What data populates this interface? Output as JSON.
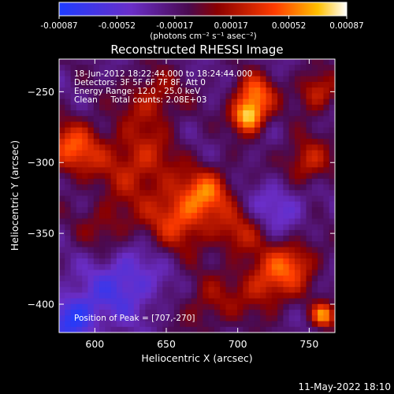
{
  "chart_data": {
    "type": "heatmap",
    "title": "Reconstructed RHESSI Image",
    "xlabel": "Heliocentric X (arcsec)",
    "ylabel": "Heliocentric Y (arcsec)",
    "xlim": [
      575,
      768
    ],
    "ylim": [
      -420,
      -227
    ],
    "xticks": [
      600,
      650,
      700,
      750
    ],
    "yticks": [
      -250,
      -300,
      -350,
      -400
    ],
    "colorbar": {
      "label": "(photons cm⁻² s⁻¹ asec⁻²)",
      "range": [
        -0.00087,
        0.00087
      ],
      "ticks": [
        "-0.00087",
        "-0.00052",
        "-0.00017",
        "0.00017",
        "0.00052",
        "0.00087"
      ]
    },
    "peak": [
      707,
      -270
    ],
    "hot_spots": [
      {
        "x": 707,
        "y": -268,
        "v": 1.0,
        "r": 8
      },
      {
        "x": 712,
        "y": -252,
        "v": 0.75,
        "r": 10
      },
      {
        "x": 585,
        "y": -290,
        "v": 0.7,
        "r": 14
      },
      {
        "x": 660,
        "y": -338,
        "v": 0.7,
        "r": 16
      },
      {
        "x": 630,
        "y": -300,
        "v": 0.55,
        "r": 18
      },
      {
        "x": 680,
        "y": -320,
        "v": 0.6,
        "r": 12
      },
      {
        "x": 720,
        "y": -385,
        "v": 0.6,
        "r": 14
      },
      {
        "x": 740,
        "y": -370,
        "v": 0.55,
        "r": 12
      },
      {
        "x": 760,
        "y": -408,
        "v": 0.85,
        "r": 6
      },
      {
        "x": 748,
        "y": -300,
        "v": 0.55,
        "r": 12
      },
      {
        "x": 755,
        "y": -250,
        "v": 0.55,
        "r": 10
      },
      {
        "x": 640,
        "y": -255,
        "v": 0.45,
        "r": 14
      },
      {
        "x": 700,
        "y": -350,
        "v": 0.45,
        "r": 12
      },
      {
        "x": 610,
        "y": -345,
        "v": 0.35,
        "r": 14
      },
      {
        "x": 680,
        "y": -400,
        "v": 0.35,
        "r": 14
      },
      {
        "x": 620,
        "y": -385,
        "v": -0.5,
        "r": 18
      },
      {
        "x": 585,
        "y": -410,
        "v": -0.7,
        "r": 12
      },
      {
        "x": 730,
        "y": -330,
        "v": -0.35,
        "r": 14
      }
    ],
    "annotations": {
      "time": "18-Jun-2012 18:22:44.000 to 18:24:44.000",
      "detectors": "Detectors: 3F 5F 6F 7F 8F, Att 0",
      "energy": "Energy Range: 12.0 - 25.0 keV",
      "clean": "Clean     Total counts: 2.08E+03",
      "peak_label": "Position of Peak = [707,-270]"
    }
  },
  "footer": {
    "date": "11-May-2022 18:10"
  }
}
